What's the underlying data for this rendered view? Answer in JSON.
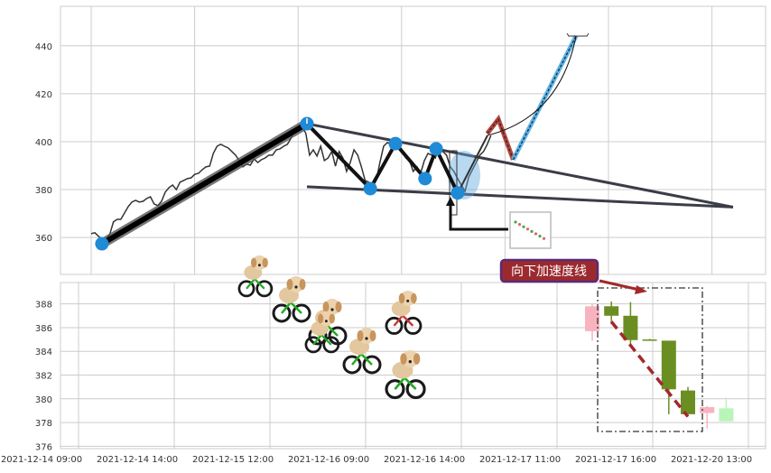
{
  "chart_data": [
    {
      "type": "line",
      "panel": "top",
      "ylim": [
        344.6,
        456.5
      ],
      "yticks": [
        360,
        380,
        400,
        420,
        440
      ],
      "grid": true,
      "price_series": [
        361.6,
        362.0,
        360.5,
        359.3,
        359.3,
        361.2,
        366.5,
        367.6,
        367.6,
        370.2,
        372.9,
        374.8,
        375.5,
        374.8,
        375.1,
        376.3,
        377.0,
        374.0,
        373.3,
        375.1,
        378.9,
        380.8,
        381.9,
        380.0,
        383.1,
        383.8,
        384.6,
        384.9,
        386.4,
        386.8,
        388.3,
        389.5,
        389.8,
        395.1,
        398.1,
        398.9,
        398.1,
        397.4,
        395.9,
        394.4,
        392.1,
        389.5,
        390.6,
        390.2,
        392.8,
        391.3,
        392.5,
        393.2,
        394.4,
        394.4,
        396.6,
        397.0,
        398.1,
        398.9,
        401.5,
        405.3,
        406.4,
        406.4,
        403.4,
        394.4,
        396.6,
        394.0,
        398.1,
        392.1,
        393.2,
        395.9,
        389.8,
        395.9,
        393.2,
        387.6,
        391.3,
        396.6,
        394.4,
        389.5,
        383.8,
        383.1,
        381.5,
        383.8,
        391.3,
        398.1,
        399.6,
        398.9,
        397.0,
        398.9,
        395.9,
        393.2,
        392.1,
        387.6,
        389.5,
        386.8,
        392.1,
        395.1,
        394.4,
        393.2,
        398.9,
        395.9,
        394.4,
        389.5,
        387.6,
        384.6,
        381.9,
        379.3,
        385.3,
        388.3,
        391.3,
        394.4,
        395.9,
        398.9,
        402.6
      ],
      "pivots": [
        [
          2.9,
          357.4
        ],
        [
          58.3,
          407.5
        ],
        [
          75.4,
          380.4
        ],
        [
          82.2,
          399.2
        ],
        [
          90.2,
          384.6
        ],
        [
          93.2,
          397.0
        ],
        [
          99.0,
          378.6
        ]
      ],
      "upper_trendline": [
        [
          58.3,
          407.5
        ],
        [
          173.4,
          372.7
        ]
      ],
      "lower_trendline": [
        [
          58.3,
          381.2
        ],
        [
          173.4,
          372.7
        ]
      ],
      "red_zigzag": [
        [
          107,
          403.4
        ],
        [
          110,
          409.4
        ],
        [
          114,
          392.5
        ]
      ],
      "blue_projection": [
        [
          114,
          392.5
        ],
        [
          131,
          444.1
        ]
      ],
      "arc": {
        "from": [
          107,
          402.6
        ],
        "to": [
          131,
          444.1
        ]
      },
      "colors": {
        "price": "#333333",
        "pivot": "#1f8ad6",
        "trend": "#3a3d47",
        "zigzag": "#111111",
        "red": "#b5443e",
        "blue": "#5fb4e6"
      }
    },
    {
      "type": "candlestick",
      "panel": "bottom",
      "ylim": [
        375.8,
        389.8
      ],
      "yticks": [
        376,
        378,
        380,
        382,
        384,
        386,
        388
      ],
      "xticks": [
        "2021-12-14 09:00",
        "2021-12-14 14:00",
        "2021-12-15 12:00",
        "2021-12-16 09:00",
        "2021-12-16 14:00",
        "2021-12-17 11:00",
        "2021-12-17 16:00",
        "2021-12-20 13:00"
      ],
      "grid": true,
      "candles": [
        {
          "open": 385.7,
          "close": 387.8,
          "high": 388.0,
          "low": 384.9,
          "color": "#f7b3be"
        },
        {
          "open": 387.8,
          "close": 387.0,
          "high": 388.2,
          "low": 386.3,
          "color": "#6b8e23"
        },
        {
          "open": 387.0,
          "close": 384.95,
          "high": 388.15,
          "low": 384.6,
          "color": "#6b8e23"
        },
        {
          "open": 385.0,
          "close": 385.0,
          "high": 385.05,
          "low": 384.95,
          "color": "#6b8e23"
        },
        {
          "open": 384.9,
          "close": 380.8,
          "high": 384.9,
          "low": 378.7,
          "color": "#6b8e23"
        },
        {
          "open": 380.7,
          "close": 378.7,
          "high": 381.0,
          "low": 378.7,
          "color": "#6b8e23"
        },
        {
          "open": 378.8,
          "close": 379.3,
          "high": 379.4,
          "low": 377.5,
          "color": "#f7b3be"
        },
        {
          "open": 379.2,
          "close": 378.1,
          "high": 380.1,
          "low": 378.1,
          "color": "#b9f5b9"
        }
      ],
      "annotation": {
        "label": "向下加速度线",
        "bg": "#9b2a2e",
        "border": "#5b2a78"
      },
      "accel_line": [
        [
          1,
          386.5
        ],
        [
          5,
          378.5
        ]
      ]
    }
  ]
}
